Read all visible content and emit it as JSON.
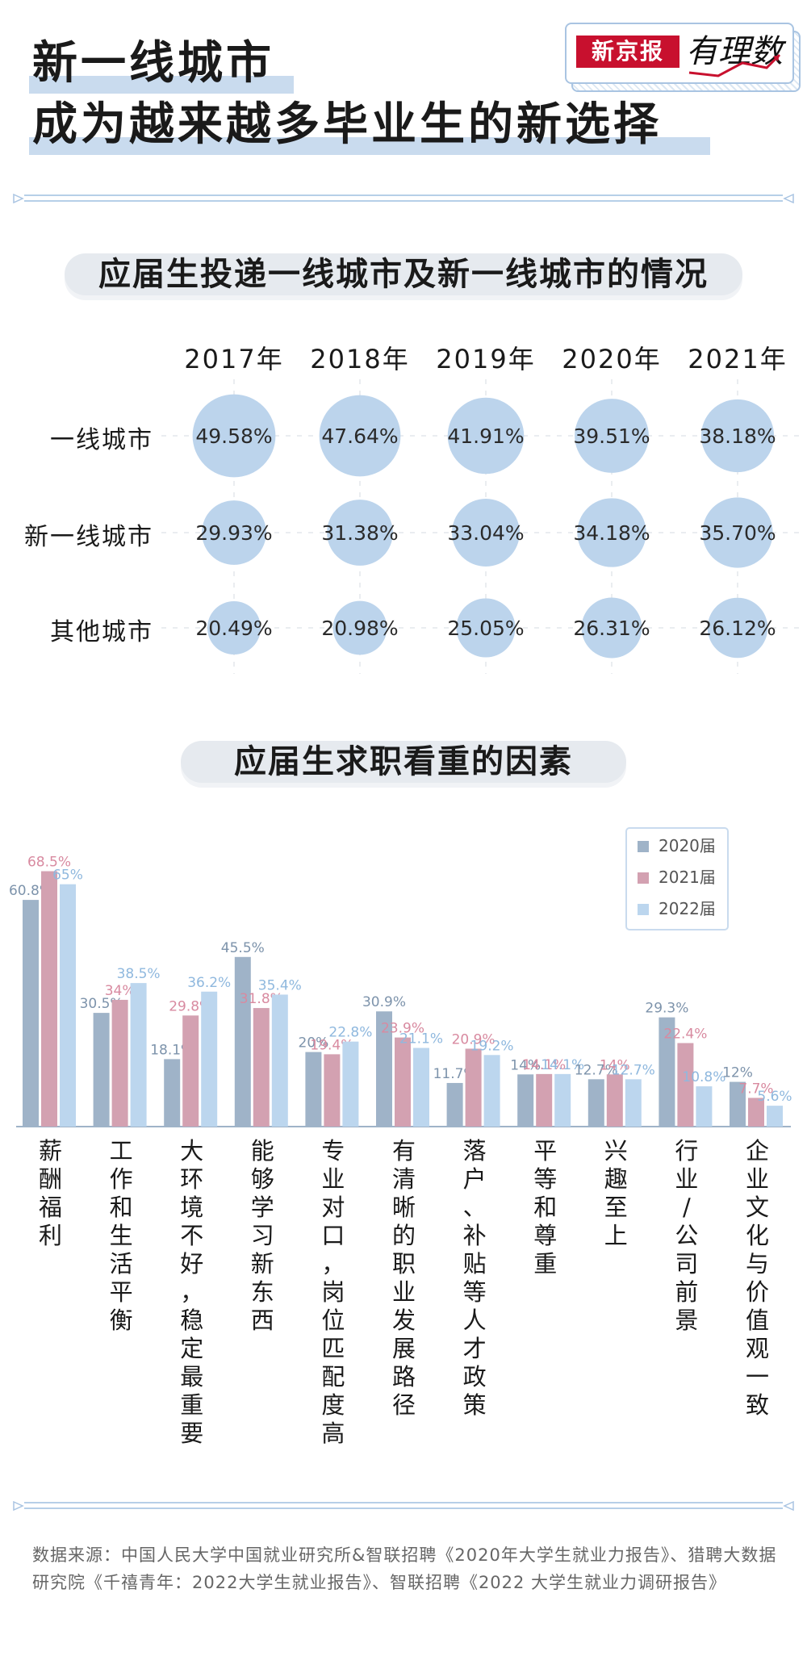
{
  "header": {
    "title_line1": "新一线城市",
    "title_line2": "成为越来越多毕业生的新选择",
    "logo_brand": "新京报",
    "logo_script": "有理数"
  },
  "section1": {
    "title": "应届生投递一线城市及新一线城市的情况"
  },
  "section2": {
    "title": "应届生求职看重的因素"
  },
  "colors": {
    "highlight": "#c9dbee",
    "bubble": "#bcd4ec",
    "series_2020": "#9fb3c8",
    "series_2021": "#d3a1b1",
    "series_2022": "#bcd6ee",
    "brand_red": "#c8102e"
  },
  "chart_data": [
    {
      "type": "table",
      "columns": [
        "2017年",
        "2018年",
        "2019年",
        "2020年",
        "2021年"
      ],
      "rows": [
        {
          "label": "一线城市",
          "values": [
            49.58,
            47.64,
            41.91,
            39.51,
            38.18
          ],
          "display": [
            "49.58%",
            "47.64%",
            "41.91%",
            "39.51%",
            "38.18%"
          ]
        },
        {
          "label": "新一线城市",
          "values": [
            29.93,
            31.38,
            33.04,
            34.18,
            35.7
          ],
          "display": [
            "29.93%",
            "31.38%",
            "33.04%",
            "34.18%",
            "35.70%"
          ]
        },
        {
          "label": "其他城市",
          "values": [
            20.49,
            20.98,
            25.05,
            26.31,
            26.12
          ],
          "display": [
            "20.49%",
            "20.98%",
            "25.05%",
            "26.31%",
            "26.12%"
          ]
        }
      ]
    },
    {
      "type": "bar",
      "categories": [
        "薪酬福利",
        "工作和生活平衡",
        "大环境不好，稳定最重要",
        "能够学习新东西",
        "专业对口，岗位匹配度高",
        "有清晰的职业发展路径",
        "落户、补贴等人才政策",
        "平等和尊重",
        "兴趣至上",
        "行业/公司前景",
        "企业文化与价值观一致"
      ],
      "series": [
        {
          "name": "2020届",
          "values": [
            60.8,
            30.5,
            18.1,
            45.5,
            20,
            30.9,
            11.7,
            14,
            12.7,
            29.3,
            12
          ],
          "labels": [
            "60.8%",
            "30.5%",
            "18.1%",
            "45.5%",
            "20%",
            "30.9%",
            "11.7%",
            "14%",
            "12.7%",
            "29.3%",
            "12%"
          ]
        },
        {
          "name": "2021届",
          "values": [
            68.5,
            34,
            29.8,
            31.8,
            19.4,
            23.9,
            20.9,
            14.1,
            14,
            22.4,
            7.7
          ],
          "labels": [
            "68.5%",
            "34%",
            "29.8%",
            "31.8%",
            "19.4%",
            "23.9%",
            "20.9%",
            "14.1%",
            "14%",
            "22.4%",
            "7.7%"
          ]
        },
        {
          "name": "2022届",
          "values": [
            65,
            38.5,
            36.2,
            35.4,
            22.8,
            21.1,
            19.2,
            14.1,
            12.7,
            10.8,
            5.6
          ],
          "labels": [
            "65%",
            "38.5%",
            "36.2%",
            "35.4%",
            "22.8%",
            "21.1%",
            "19.2%",
            "14.1%",
            "12.7%",
            "10.8%",
            "5.6%"
          ]
        }
      ],
      "ylim": [
        0,
        70
      ],
      "legend_position": "top-right"
    }
  ],
  "source_text": "数据来源：中国人民大学中国就业研究所&智联招聘《2020年大学生就业力报告》、猎聘大数据研究院《千禧青年：2022大学生就业报告》、智联招聘《2022 大学生就业力调研报告》"
}
